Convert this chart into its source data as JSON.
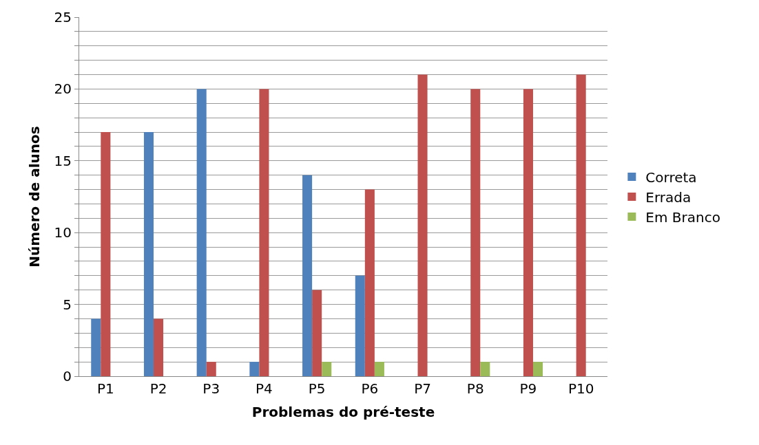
{
  "chart_data": {
    "type": "bar",
    "xlabel": "Problemas do pré-teste",
    "ylabel": "Número de alunos",
    "categories": [
      "P1",
      "P2",
      "P3",
      "P4",
      "P5",
      "P6",
      "P7",
      "P8",
      "P9",
      "P10"
    ],
    "series": [
      {
        "name": "Correta",
        "color": "#4f81bd",
        "values": [
          4,
          17,
          20,
          1,
          14,
          7,
          0,
          0,
          0,
          0
        ]
      },
      {
        "name": "Errada",
        "color": "#c0504d",
        "values": [
          17,
          4,
          1,
          20,
          6,
          13,
          21,
          20,
          20,
          21
        ]
      },
      {
        "name": "Em Branco",
        "color": "#9bbb59",
        "values": [
          0,
          0,
          0,
          0,
          1,
          1,
          0,
          1,
          1,
          0
        ]
      }
    ],
    "ylim": [
      0,
      25
    ],
    "yticks": [
      0,
      {
        "value": 1,
        "label": null
      },
      {
        "value": 2,
        "label": null
      },
      {
        "value": 3,
        "label": null
      },
      {
        "value": 4,
        "label": null
      },
      5,
      {
        "value": 6,
        "label": null
      },
      {
        "value": 7,
        "label": null
      },
      {
        "value": 8,
        "label": null
      },
      {
        "value": 9,
        "label": null
      },
      10,
      {
        "value": 11,
        "label": null
      },
      {
        "value": 12,
        "label": null
      },
      {
        "value": 13,
        "label": null
      },
      {
        "value": 14,
        "label": null
      },
      15,
      {
        "value": 16,
        "label": null
      },
      {
        "value": 17,
        "label": null
      },
      {
        "value": 18,
        "label": null
      },
      {
        "value": 19,
        "label": null
      },
      20,
      {
        "value": 21,
        "label": null
      },
      {
        "value": 22,
        "label": null
      },
      {
        "value": 23,
        "label": null
      },
      {
        "value": 24,
        "label": null
      },
      25
    ],
    "grid": "y",
    "legend": "right"
  }
}
